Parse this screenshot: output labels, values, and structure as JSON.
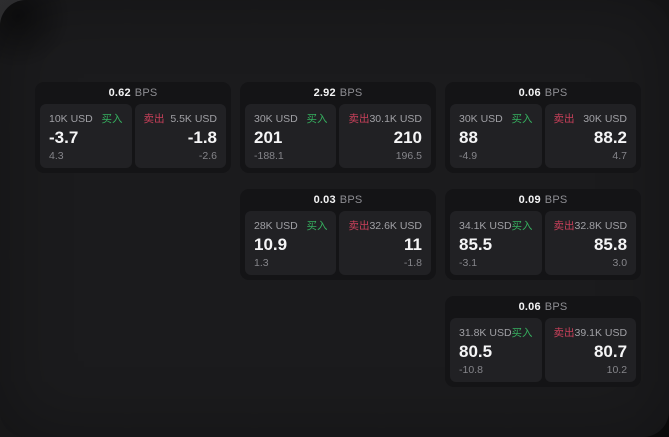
{
  "labels": {
    "unit": "BPS",
    "buy": "买入",
    "sell": "卖出"
  },
  "colors": {
    "buy_green": "#36b05f",
    "sell_red": "#c9405a",
    "card_background": "#141416",
    "panel_background": "#212124",
    "window_background": "#1b1b1d"
  },
  "cards": [
    {
      "bps": "0.62",
      "buy": {
        "amount": "10K USD",
        "value": "-3.7",
        "sub": "4.3"
      },
      "sell": {
        "amount": "5.5K USD",
        "value": "-1.8",
        "sub": "-2.6"
      }
    },
    {
      "bps": "2.92",
      "buy": {
        "amount": "30K USD",
        "value": "201",
        "sub": "-188.1"
      },
      "sell": {
        "amount": "30.1K USD",
        "value": "210",
        "sub": "196.5"
      }
    },
    {
      "bps": "0.06",
      "buy": {
        "amount": "30K USD",
        "value": "88",
        "sub": "-4.9"
      },
      "sell": {
        "amount": "30K USD",
        "value": "88.2",
        "sub": "4.7"
      }
    },
    {
      "bps": "0.03",
      "buy": {
        "amount": "28K USD",
        "value": "10.9",
        "sub": "1.3"
      },
      "sell": {
        "amount": "32.6K USD",
        "value": "11",
        "sub": "-1.8"
      }
    },
    {
      "bps": "0.09",
      "buy": {
        "amount": "34.1K USD",
        "value": "85.5",
        "sub": "-3.1"
      },
      "sell": {
        "amount": "32.8K USD",
        "value": "85.8",
        "sub": "3.0"
      }
    },
    {
      "bps": "0.06",
      "buy": {
        "amount": "31.8K USD",
        "value": "80.5",
        "sub": "-10.8"
      },
      "sell": {
        "amount": "39.1K USD",
        "value": "80.7",
        "sub": "10.2"
      }
    }
  ]
}
